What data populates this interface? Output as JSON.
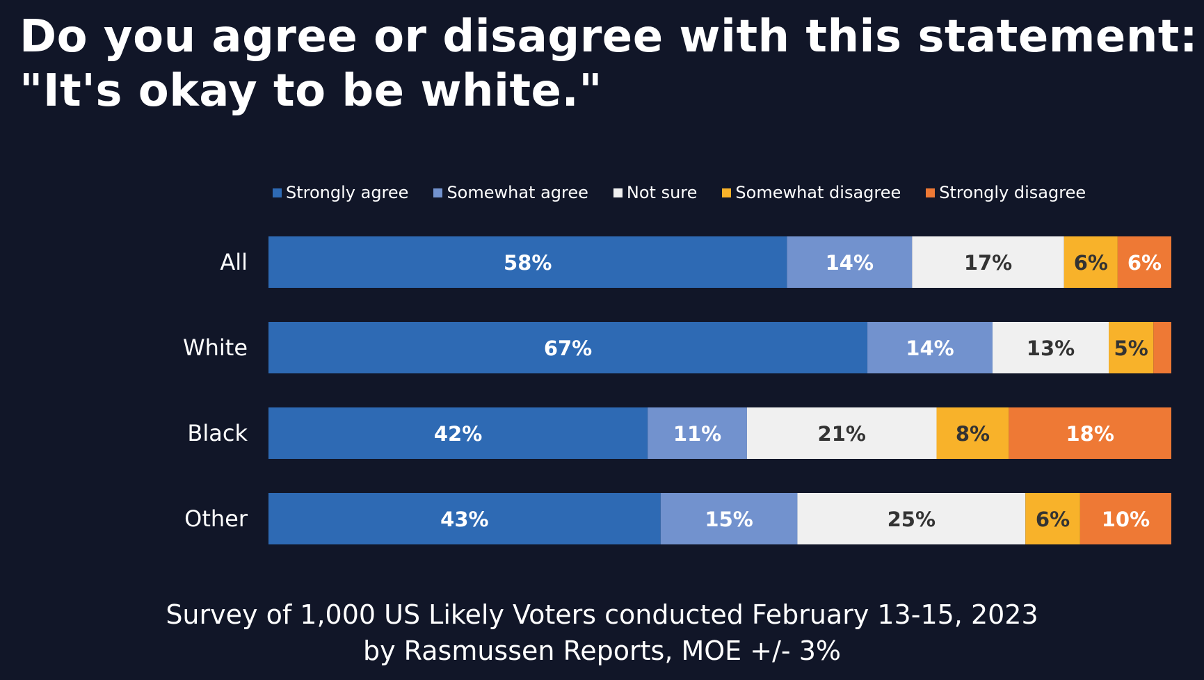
{
  "title_line1": "Do you agree or disagree with this statement:",
  "title_line2": "\"It's okay to be white.\"",
  "footer_line1": "Survey of 1,000 US Likely Voters conducted February 13-15, 2023",
  "footer_line2": "by Rasmussen Reports, MOE +/- 3%",
  "chart_data": {
    "type": "bar",
    "orientation": "horizontal",
    "stacked": true,
    "categories": [
      "All",
      "White",
      "Black",
      "Other"
    ],
    "series": [
      {
        "name": "Strongly agree",
        "color": "#2E6AB4",
        "label_color": "#ffffff",
        "values": [
          58,
          67,
          42,
          43
        ],
        "labels": [
          "58%",
          "67%",
          "42%",
          "43%"
        ]
      },
      {
        "name": "Somewhat agree",
        "color": "#7292CE",
        "label_color": "#ffffff",
        "values": [
          14,
          14,
          11,
          15
        ],
        "labels": [
          "14%",
          "14%",
          "11%",
          "15%"
        ]
      },
      {
        "name": "Not sure",
        "color": "#F0F0F0",
        "label_color": "#333333",
        "values": [
          17,
          13,
          21,
          25
        ],
        "labels": [
          "17%",
          "13%",
          "21%",
          "25%"
        ]
      },
      {
        "name": "Somewhat disagree",
        "color": "#F8B22A",
        "label_color": "#333333",
        "values": [
          6,
          5,
          8,
          6
        ],
        "labels": [
          "6%",
          "5%",
          "8%",
          "6%"
        ]
      },
      {
        "name": "Strongly disagree",
        "color": "#EE7935",
        "label_color": "#ffffff",
        "values": [
          6,
          2,
          18,
          10
        ],
        "labels": [
          "6%",
          "",
          "18%",
          "10%"
        ]
      }
    ],
    "legend_position": "top",
    "grid": false
  }
}
